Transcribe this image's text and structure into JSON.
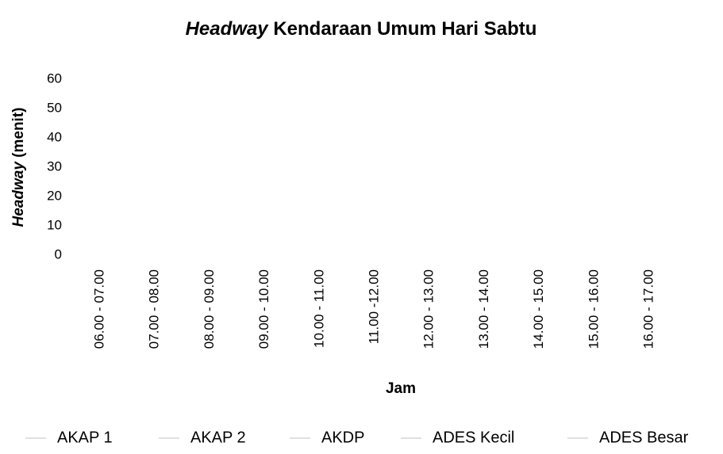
{
  "chart_data": {
    "type": "line",
    "title": {
      "emphasis": "Headway",
      "text": "Kendaraan Umum Hari Sabtu"
    },
    "ylabel": {
      "emphasis": "Headway",
      "text": "(menit)"
    },
    "xlabel": "Jam",
    "categories": [
      "06.00 - 07.00",
      "07.00 - 08.00",
      "08.00 - 09.00",
      "09.00 - 10.00",
      "10.00 - 11.00",
      "11.00 -12.00",
      "12.00 - 13.00",
      "13.00 - 14.00",
      "14.00 - 15.00",
      "15.00 - 16.00",
      "16.00 - 17.00"
    ],
    "series": [
      {
        "name": "AKAP 1",
        "color": "#e0e0e0",
        "values": [
          null,
          null,
          null,
          null,
          null,
          null,
          null,
          null,
          null,
          null,
          null
        ]
      },
      {
        "name": "AKAP 2",
        "color": "#e0e0e0",
        "values": [
          null,
          null,
          null,
          null,
          null,
          null,
          null,
          null,
          null,
          null,
          null
        ]
      },
      {
        "name": "AKDP",
        "color": "#e0e0e0",
        "values": [
          null,
          null,
          null,
          null,
          null,
          null,
          null,
          null,
          null,
          null,
          null
        ]
      },
      {
        "name": "ADES Kecil",
        "color": "#e0e0e0",
        "values": [
          null,
          null,
          null,
          null,
          null,
          null,
          null,
          null,
          null,
          null,
          null
        ]
      },
      {
        "name": "ADES Besar",
        "color": "#e0e0e0",
        "values": [
          null,
          null,
          null,
          null,
          null,
          null,
          null,
          null,
          null,
          null,
          null
        ]
      }
    ],
    "ylim": [
      0,
      60
    ],
    "yticks": [
      0,
      10,
      20,
      30,
      40,
      50,
      60
    ],
    "grid": false,
    "legend": "bottom"
  }
}
